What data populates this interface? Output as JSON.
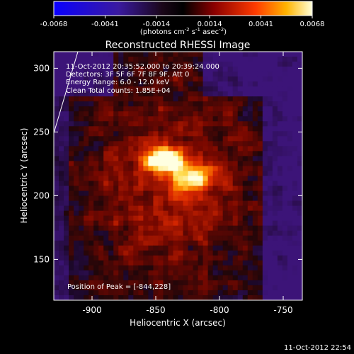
{
  "chart_data": {
    "type": "heatmap",
    "title": "Reconstructed RHESSI Image",
    "xlabel": "Heliocentric X (arcsec)",
    "ylabel": "Heliocentric Y (arcsec)",
    "xlim": [
      -930,
      -735
    ],
    "ylim": [
      118,
      313
    ],
    "xticks": [
      {
        "v": -900,
        "label": "-900"
      },
      {
        "v": -850,
        "label": "-850"
      },
      {
        "v": -800,
        "label": "-800"
      },
      {
        "v": -750,
        "label": "-750"
      }
    ],
    "yticks": [
      {
        "v": 150,
        "label": "150"
      },
      {
        "v": 200,
        "label": "200"
      },
      {
        "v": 250,
        "label": "250"
      },
      {
        "v": 300,
        "label": "300"
      }
    ],
    "colorbar": {
      "range": [
        -0.0068,
        0.0068
      ],
      "ticks": [
        {
          "v": -0.0068,
          "label": "-0.0068"
        },
        {
          "v": -0.0041,
          "label": "-0.0041"
        },
        {
          "v": -0.0014,
          "label": "-0.0014"
        },
        {
          "v": 0.0014,
          "label": "0.0014"
        },
        {
          "v": 0.0041,
          "label": "0.0041"
        },
        {
          "v": 0.0068,
          "label": "0.0068"
        }
      ],
      "units_main": "(photons cm",
      "units_exp1": "-2",
      "units_mid": " s",
      "units_exp2": "-1",
      "units_mid2": " asec",
      "units_exp3": "-2",
      "units_end": ")"
    },
    "annotations": {
      "time_range": "11-Oct-2012 20:35:52.000 to 20:39:24.000",
      "detectors": "Detectors: 3F 5F 6F 7F 8F 9F, Att 0",
      "energy": "Energy Range: 6.0 - 12.0 keV",
      "clean": "Clean    Total counts: 1.85E+04",
      "peak": "Position of Peak = [-844,228]"
    },
    "peak": [
      -844,
      228
    ],
    "footer_date": "11-Oct-2012 22:54"
  }
}
